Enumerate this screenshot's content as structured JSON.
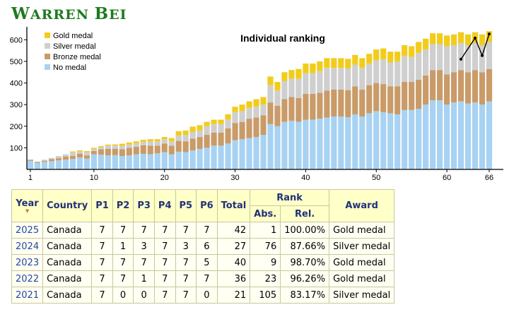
{
  "page": {
    "title_cap1": "W",
    "title_rest1": "ARREN ",
    "title_cap2": "B",
    "title_rest2": "EI"
  },
  "colors": {
    "gold": "#f2cc1c",
    "silver": "#cfcfcf",
    "bronze": "#c99b68",
    "none": "#a7d2f2",
    "title": "#1f7a1f",
    "line": "#000000"
  },
  "chart_data": {
    "type": "bar",
    "title": "Individual ranking",
    "stacked": true,
    "legend": [
      "Gold medal",
      "Silver medal",
      "Bronze medal",
      "No medal"
    ],
    "legend_position": "top-left",
    "ylim": [
      0,
      660
    ],
    "yticks": [
      100,
      200,
      300,
      400,
      500,
      600
    ],
    "xticks": [
      1,
      10,
      20,
      30,
      40,
      50,
      60,
      66
    ],
    "x": [
      1,
      2,
      3,
      4,
      5,
      6,
      7,
      8,
      9,
      10,
      11,
      12,
      13,
      14,
      15,
      16,
      17,
      18,
      19,
      20,
      21,
      22,
      23,
      24,
      25,
      26,
      27,
      28,
      29,
      30,
      31,
      32,
      33,
      34,
      35,
      36,
      37,
      38,
      39,
      40,
      41,
      42,
      43,
      44,
      45,
      46,
      47,
      48,
      49,
      50,
      51,
      52,
      53,
      54,
      55,
      56,
      57,
      58,
      59,
      60,
      61,
      62,
      63,
      64,
      65,
      66
    ],
    "series": [
      {
        "name": "No medal",
        "values": [
          40,
          30,
          35,
          38,
          42,
          45,
          48,
          55,
          50,
          70,
          68,
          65,
          66,
          62,
          65,
          70,
          72,
          70,
          75,
          80,
          70,
          82,
          80,
          88,
          95,
          100,
          110,
          110,
          120,
          135,
          140,
          145,
          150,
          160,
          210,
          200,
          220,
          225,
          220,
          230,
          230,
          235,
          240,
          245,
          245,
          242,
          255,
          245,
          260,
          270,
          265,
          260,
          255,
          275,
          275,
          280,
          300,
          320,
          320,
          300,
          310,
          315,
          305,
          310,
          300,
          315
        ]
      },
      {
        "name": "Bronze medal",
        "values": [
          5,
          5,
          5,
          10,
          10,
          15,
          15,
          18,
          15,
          15,
          25,
          30,
          30,
          32,
          35,
          35,
          40,
          40,
          35,
          40,
          40,
          50,
          50,
          55,
          55,
          60,
          60,
          60,
          70,
          80,
          80,
          90,
          90,
          90,
          100,
          95,
          105,
          110,
          110,
          120,
          120,
          120,
          125,
          125,
          125,
          125,
          130,
          125,
          130,
          130,
          130,
          125,
          130,
          130,
          130,
          135,
          135,
          140,
          140,
          140,
          140,
          145,
          145,
          150,
          150,
          150
        ]
      },
      {
        "name": "Silver medal",
        "values": [
          0,
          0,
          5,
          5,
          10,
          10,
          15,
          10,
          15,
          10,
          10,
          15,
          15,
          15,
          15,
          15,
          15,
          20,
          20,
          20,
          20,
          25,
          30,
          30,
          30,
          40,
          40,
          40,
          40,
          50,
          50,
          50,
          50,
          50,
          80,
          70,
          85,
          85,
          90,
          95,
          95,
          100,
          105,
          100,
          100,
          100,
          100,
          100,
          100,
          105,
          115,
          110,
          115,
          120,
          115,
          125,
          120,
          120,
          120,
          130,
          125,
          125,
          125,
          125,
          125,
          125
        ]
      },
      {
        "name": "Gold medal",
        "values": [
          0,
          0,
          0,
          0,
          0,
          0,
          5,
          5,
          5,
          5,
          5,
          5,
          5,
          10,
          10,
          10,
          10,
          10,
          10,
          10,
          15,
          20,
          20,
          25,
          25,
          20,
          20,
          20,
          25,
          25,
          30,
          30,
          35,
          35,
          40,
          40,
          40,
          40,
          45,
          45,
          45,
          45,
          45,
          45,
          45,
          45,
          45,
          45,
          45,
          50,
          50,
          50,
          45,
          50,
          50,
          50,
          50,
          50,
          50,
          50,
          50,
          50,
          50,
          50,
          50,
          50
        ]
      }
    ],
    "line_series": {
      "x": [
        62,
        64,
        65,
        66
      ],
      "values": [
        510,
        608,
        527,
        627
      ]
    }
  },
  "table": {
    "headers": {
      "year": "Year",
      "country": "Country",
      "p1": "P1",
      "p2": "P2",
      "p3": "P3",
      "p4": "P4",
      "p5": "P5",
      "p6": "P6",
      "total": "Total",
      "rank": "Rank",
      "abs": "Abs.",
      "rel": "Rel.",
      "award": "Award"
    },
    "rows": [
      {
        "year": "2025",
        "country": "Canada",
        "p1": "7",
        "p2": "7",
        "p3": "7",
        "p4": "7",
        "p5": "7",
        "p6": "7",
        "total": "42",
        "abs": "1",
        "rel": "100.00%",
        "award": "Gold medal"
      },
      {
        "year": "2024",
        "country": "Canada",
        "p1": "7",
        "p2": "1",
        "p3": "3",
        "p4": "7",
        "p5": "3",
        "p6": "6",
        "total": "27",
        "abs": "76",
        "rel": "87.66%",
        "award": "Silver medal"
      },
      {
        "year": "2023",
        "country": "Canada",
        "p1": "7",
        "p2": "7",
        "p3": "7",
        "p4": "7",
        "p5": "7",
        "p6": "5",
        "total": "40",
        "abs": "9",
        "rel": "98.70%",
        "award": "Gold medal"
      },
      {
        "year": "2022",
        "country": "Canada",
        "p1": "7",
        "p2": "7",
        "p3": "1",
        "p4": "7",
        "p5": "7",
        "p6": "7",
        "total": "36",
        "abs": "23",
        "rel": "96.26%",
        "award": "Gold medal"
      },
      {
        "year": "2021",
        "country": "Canada",
        "p1": "7",
        "p2": "0",
        "p3": "0",
        "p4": "7",
        "p5": "7",
        "p6": "0",
        "total": "21",
        "abs": "105",
        "rel": "83.17%",
        "award": "Silver medal"
      }
    ]
  }
}
